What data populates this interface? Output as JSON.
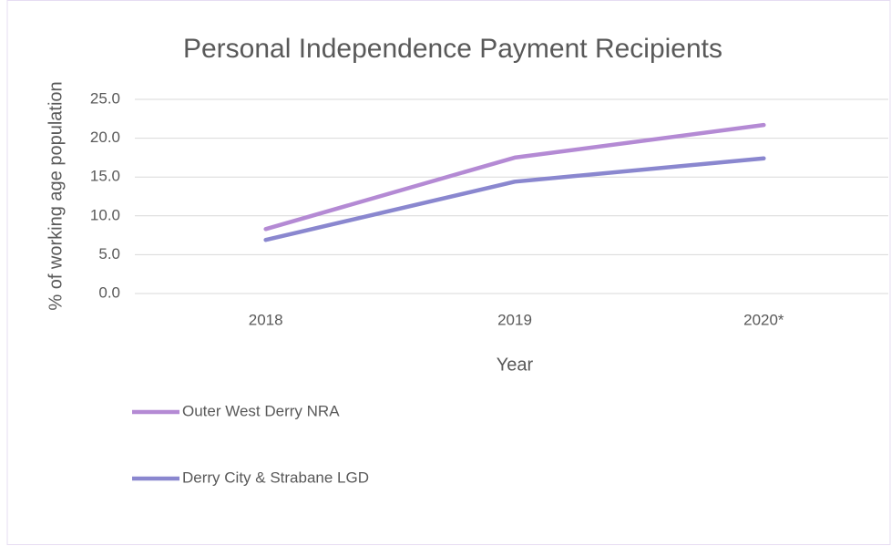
{
  "chart_data": {
    "type": "line",
    "title": "Personal Independence Payment Recipients",
    "x_label": "Year",
    "y_label": "% of working age population",
    "categories": [
      "2018",
      "2019",
      "2020*"
    ],
    "series": [
      {
        "name": "Outer West Derry NRA",
        "color": "#b48ad4",
        "values": [
          8.3,
          17.5,
          21.7
        ]
      },
      {
        "name": "Derry City & Strabane LGD",
        "color": "#8a87cf",
        "values": [
          6.9,
          14.4,
          17.4
        ]
      }
    ],
    "ylim": [
      0,
      25
    ],
    "yticks": [
      {
        "value": 0,
        "label": "0.0"
      },
      {
        "value": 5,
        "label": "5.0"
      },
      {
        "value": 10,
        "label": "10.0"
      },
      {
        "value": 15,
        "label": "15.0"
      },
      {
        "value": 20,
        "label": "20.0"
      },
      {
        "value": 25,
        "label": "25.0"
      }
    ],
    "grid": true
  }
}
